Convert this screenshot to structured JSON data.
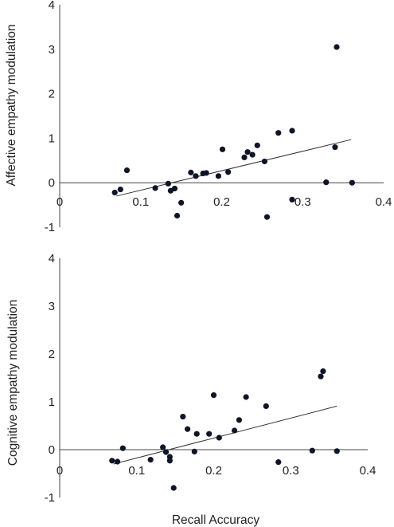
{
  "chart_data": [
    {
      "type": "scatter",
      "ylabel": "Affective empathy modulation",
      "xlim": [
        0,
        0.4
      ],
      "ylim": [
        -1,
        4
      ],
      "xticks": [
        "0",
        "0.1",
        "0.2",
        "0.3",
        "0.4"
      ],
      "yticks": [
        "4",
        "3",
        "2",
        "1",
        "0",
        "-1"
      ],
      "grid": false,
      "trendline": {
        "x": [
          0.07,
          0.36
        ],
        "y": [
          -0.3,
          0.97
        ]
      },
      "points": [
        [
          0.068,
          -0.22
        ],
        [
          0.075,
          -0.15
        ],
        [
          0.083,
          0.28
        ],
        [
          0.118,
          -0.12
        ],
        [
          0.134,
          -0.02
        ],
        [
          0.137,
          -0.18
        ],
        [
          0.142,
          -0.13
        ],
        [
          0.145,
          -0.74
        ],
        [
          0.15,
          -0.45
        ],
        [
          0.162,
          0.23
        ],
        [
          0.168,
          0.15
        ],
        [
          0.177,
          0.21
        ],
        [
          0.181,
          0.22
        ],
        [
          0.196,
          0.15
        ],
        [
          0.201,
          0.75
        ],
        [
          0.208,
          0.24
        ],
        [
          0.228,
          0.57
        ],
        [
          0.232,
          0.69
        ],
        [
          0.238,
          0.63
        ],
        [
          0.244,
          0.84
        ],
        [
          0.253,
          0.48
        ],
        [
          0.256,
          -0.77
        ],
        [
          0.27,
          1.12
        ],
        [
          0.287,
          1.17
        ],
        [
          0.287,
          -0.38
        ],
        [
          0.329,
          0.01
        ],
        [
          0.34,
          0.8
        ],
        [
          0.342,
          3.05
        ],
        [
          0.361,
          0.0
        ]
      ]
    },
    {
      "type": "scatter",
      "ylabel": "Cognitive empathy modulation",
      "xlabel": "Recall Accuracy",
      "xlim": [
        0,
        0.4
      ],
      "ylim": [
        -1,
        4
      ],
      "xticks": [
        "0",
        "0.1",
        "0.2",
        "0.3",
        "0.4"
      ],
      "yticks": [
        "4",
        "3",
        "2",
        "1",
        "0",
        "-1"
      ],
      "grid": false,
      "trendline": {
        "x": [
          0.07,
          0.36
        ],
        "y": [
          -0.3,
          0.91
        ]
      },
      "points": [
        [
          0.068,
          -0.23
        ],
        [
          0.075,
          -0.25
        ],
        [
          0.082,
          0.03
        ],
        [
          0.118,
          -0.21
        ],
        [
          0.134,
          0.05
        ],
        [
          0.138,
          -0.05
        ],
        [
          0.143,
          -0.15
        ],
        [
          0.143,
          -0.23
        ],
        [
          0.148,
          -0.8
        ],
        [
          0.16,
          0.69
        ],
        [
          0.166,
          0.43
        ],
        [
          0.175,
          -0.04
        ],
        [
          0.178,
          0.33
        ],
        [
          0.194,
          0.33
        ],
        [
          0.2,
          1.14
        ],
        [
          0.207,
          0.25
        ],
        [
          0.227,
          0.4
        ],
        [
          0.233,
          0.62
        ],
        [
          0.242,
          1.1
        ],
        [
          0.268,
          0.91
        ],
        [
          0.284,
          -0.26
        ],
        [
          0.328,
          -0.02
        ],
        [
          0.339,
          1.53
        ],
        [
          0.342,
          1.64
        ],
        [
          0.36,
          -0.03
        ]
      ]
    }
  ]
}
